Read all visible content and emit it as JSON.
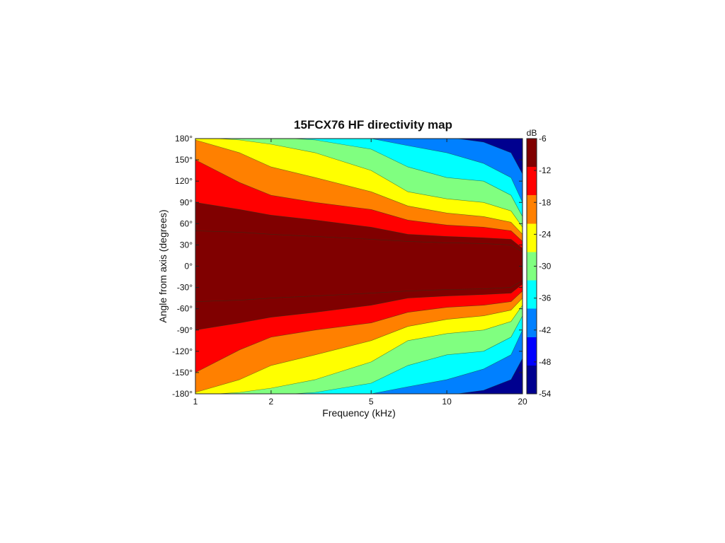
{
  "chart_data": {
    "type": "heatmap",
    "title": "15FCX76 HF directivity map",
    "xlabel": "Frequency (kHz)",
    "ylabel": "Angle from axis (degrees)",
    "x_scale": "log",
    "xlim": [
      1,
      20
    ],
    "ylim": [
      -180,
      180
    ],
    "x_ticks": [
      1,
      2,
      5,
      10,
      20
    ],
    "x_tick_labels": [
      "1",
      "2",
      "5",
      "10",
      "20"
    ],
    "y_ticks": [
      180,
      150,
      120,
      90,
      60,
      30,
      0,
      -30,
      -60,
      -90,
      -120,
      -150,
      -180
    ],
    "y_tick_labels": [
      "180°",
      "150°",
      "120°",
      "90°",
      "60°",
      "30°",
      "0°",
      "-30°",
      "-60°",
      "-90°",
      "-120°",
      "-150°",
      "-180°"
    ],
    "colorbar": {
      "label": "dB",
      "min": -54,
      "max": -6,
      "ticks": [
        -6,
        -12,
        -18,
        -24,
        -30,
        -36,
        -42,
        -48,
        -54
      ],
      "tick_labels": [
        "-6",
        "-12",
        "-18",
        "-24",
        "-30",
        "-36",
        "-42",
        "-48",
        "-54"
      ],
      "colormap": [
        "#00008f",
        "#0000ff",
        "#0080ff",
        "#00ffff",
        "#80ff80",
        "#ffff00",
        "#ff8000",
        "#ff0000",
        "#800000"
      ]
    },
    "contour_levels_db": [
      -6,
      -12,
      -18,
      -24,
      -30,
      -36,
      -42,
      -48
    ],
    "freq_kHz": [
      1,
      1.5,
      2,
      3,
      5,
      7,
      10,
      14,
      18,
      20
    ],
    "angle_deg_at_level": {
      "-6": [
        50,
        48,
        45,
        42,
        38,
        35,
        33,
        32,
        30,
        20
      ],
      "-12": [
        90,
        80,
        72,
        65,
        55,
        45,
        42,
        40,
        38,
        25
      ],
      "-18": [
        150,
        118,
        100,
        90,
        80,
        65,
        58,
        55,
        50,
        35
      ],
      "-24": [
        178,
        160,
        140,
        125,
        105,
        85,
        75,
        70,
        62,
        45
      ],
      "-30": [
        182,
        178,
        172,
        160,
        135,
        105,
        95,
        90,
        78,
        55
      ],
      "-36": [
        182,
        182,
        182,
        178,
        165,
        140,
        125,
        120,
        100,
        70
      ],
      "-42": [
        182,
        182,
        182,
        182,
        180,
        170,
        160,
        145,
        125,
        90
      ],
      "-48": [
        182,
        182,
        182,
        182,
        182,
        182,
        182,
        175,
        160,
        130
      ]
    }
  }
}
